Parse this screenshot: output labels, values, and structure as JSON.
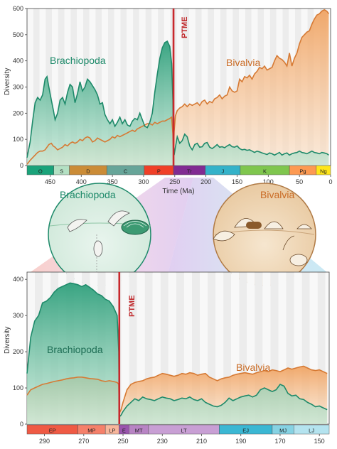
{
  "colors": {
    "brachiopoda": "#1e8a6a",
    "bivalvia": "#d67a34",
    "ptme": "#c8282c"
  },
  "chart_data": [
    {
      "type": "area",
      "ylabel": "Diversity",
      "xlabel": "Time (Ma)",
      "xlim": [
        487,
        0
      ],
      "ylim": [
        0,
        600
      ],
      "x_ticks": [
        "450",
        "400",
        "350",
        "300",
        "250",
        "200",
        "150",
        "100",
        "50",
        "0"
      ],
      "y_ticks": [
        "0",
        "100",
        "200",
        "300",
        "400",
        "500",
        "600"
      ],
      "event_label": "PTME",
      "event_x": 252,
      "periods": [
        {
          "label": "O",
          "start": 487,
          "end": 444,
          "color": "#1aa37a"
        },
        {
          "label": "S",
          "start": 444,
          "end": 419,
          "color": "#b3e0c3"
        },
        {
          "label": "D",
          "start": 419,
          "end": 359,
          "color": "#cb8c37"
        },
        {
          "label": "C",
          "start": 359,
          "end": 299,
          "color": "#67a599"
        },
        {
          "label": "P",
          "start": 299,
          "end": 252,
          "color": "#f04028"
        },
        {
          "label": "Tr",
          "start": 252,
          "end": 201,
          "color": "#812b92"
        },
        {
          "label": "J",
          "start": 201,
          "end": 145,
          "color": "#34b2c9"
        },
        {
          "label": "K",
          "start": 145,
          "end": 66,
          "color": "#7fc64e"
        },
        {
          "label": "Pg",
          "start": 66,
          "end": 23,
          "color": "#fd9a52"
        },
        {
          "label": "Ng",
          "start": 23,
          "end": 0,
          "color": "#ffe619"
        }
      ],
      "series": [
        {
          "name": "Brachiopoda",
          "x": [
            487,
            482,
            478,
            474,
            470,
            466,
            462,
            458,
            455,
            452,
            448,
            445,
            442,
            438,
            434,
            430,
            426,
            422,
            418,
            414,
            410,
            406,
            402,
            398,
            394,
            390,
            386,
            382,
            378,
            374,
            370,
            366,
            362,
            358,
            354,
            350,
            346,
            342,
            338,
            334,
            330,
            326,
            322,
            318,
            314,
            310,
            306,
            302,
            298,
            294,
            290,
            286,
            282,
            278,
            274,
            270,
            266,
            262,
            258,
            255,
            253,
            252,
            251,
            249,
            246,
            242,
            238,
            234,
            230,
            226,
            222,
            218,
            214,
            210,
            206,
            202,
            198,
            194,
            190,
            186,
            182,
            178,
            174,
            170,
            166,
            162,
            158,
            154,
            150,
            146,
            142,
            138,
            134,
            130,
            126,
            122,
            118,
            114,
            110,
            106,
            102,
            98,
            94,
            90,
            86,
            82,
            78,
            74,
            70,
            66,
            62,
            58,
            54,
            50,
            46,
            42,
            38,
            34,
            30,
            26,
            22,
            18,
            14,
            10,
            6,
            3
          ],
          "values": [
            30,
            90,
            170,
            240,
            260,
            250,
            270,
            330,
            340,
            300,
            250,
            215,
            175,
            200,
            250,
            260,
            235,
            280,
            310,
            300,
            240,
            275,
            320,
            285,
            300,
            330,
            320,
            305,
            290,
            270,
            235,
            240,
            195,
            175,
            160,
            175,
            150,
            165,
            185,
            160,
            175,
            155,
            150,
            170,
            180,
            175,
            200,
            175,
            150,
            145,
            165,
            200,
            280,
            350,
            410,
            450,
            470,
            475,
            455,
            390,
            250,
            90,
            40,
            70,
            110,
            85,
            95,
            120,
            110,
            75,
            60,
            80,
            85,
            70,
            72,
            85,
            88,
            70,
            65,
            72,
            80,
            70,
            72,
            68,
            75,
            80,
            72,
            70,
            75,
            65,
            60,
            62,
            58,
            60,
            55,
            50,
            55,
            52,
            48,
            45,
            42,
            48,
            45,
            40,
            45,
            50,
            40,
            45,
            48,
            40,
            45,
            48,
            50,
            55,
            50,
            48,
            45,
            50,
            55,
            50,
            48,
            45,
            50,
            48,
            45,
            40
          ]
        },
        {
          "name": "Bivalvia",
          "x": [
            487,
            482,
            478,
            474,
            470,
            466,
            462,
            458,
            455,
            452,
            448,
            445,
            442,
            438,
            434,
            430,
            426,
            422,
            418,
            414,
            410,
            406,
            402,
            398,
            394,
            390,
            386,
            382,
            378,
            374,
            370,
            366,
            362,
            358,
            354,
            350,
            346,
            342,
            338,
            334,
            330,
            326,
            322,
            318,
            314,
            310,
            306,
            302,
            298,
            294,
            290,
            286,
            282,
            278,
            274,
            270,
            266,
            262,
            258,
            255,
            253,
            252,
            251,
            249,
            246,
            242,
            238,
            234,
            230,
            226,
            222,
            218,
            214,
            210,
            206,
            202,
            198,
            194,
            190,
            186,
            182,
            178,
            174,
            170,
            166,
            162,
            158,
            154,
            150,
            146,
            142,
            138,
            134,
            130,
            126,
            122,
            118,
            114,
            110,
            106,
            102,
            98,
            94,
            90,
            86,
            82,
            78,
            74,
            70,
            66,
            62,
            58,
            54,
            50,
            46,
            42,
            38,
            34,
            30,
            26,
            22,
            18,
            14,
            10,
            6,
            3
          ],
          "values": [
            5,
            20,
            30,
            40,
            50,
            55,
            55,
            60,
            70,
            80,
            85,
            75,
            70,
            60,
            65,
            70,
            80,
            75,
            85,
            90,
            85,
            90,
            100,
            95,
            105,
            110,
            105,
            90,
            95,
            105,
            100,
            95,
            90,
            95,
            100,
            110,
            105,
            115,
            110,
            115,
            120,
            125,
            130,
            135,
            130,
            140,
            145,
            150,
            155,
            160,
            160,
            155,
            165,
            160,
            165,
            170,
            170,
            175,
            180,
            185,
            120,
            45,
            130,
            190,
            210,
            220,
            225,
            235,
            225,
            235,
            230,
            235,
            240,
            230,
            245,
            250,
            235,
            245,
            240,
            255,
            260,
            270,
            255,
            265,
            270,
            300,
            285,
            280,
            285,
            330,
            320,
            340,
            335,
            345,
            330,
            350,
            360,
            375,
            370,
            380,
            365,
            370,
            375,
            400,
            420,
            410,
            405,
            395,
            380,
            430,
            380,
            410,
            430,
            465,
            490,
            500,
            510,
            515,
            540,
            560,
            575,
            580,
            590,
            595,
            590,
            580
          ]
        }
      ],
      "annotations": [
        "Brachiopoda",
        "Bivalvia",
        "PTME"
      ]
    },
    {
      "type": "area",
      "ylabel": "Diversity",
      "xlabel": "",
      "xlim": [
        298.9,
        145
      ],
      "ylim": [
        0,
        420
      ],
      "x_ticks": [
        "290",
        "270",
        "250",
        "230",
        "210",
        "190",
        "170",
        "150"
      ],
      "y_ticks": [
        "0",
        "100",
        "200",
        "300",
        "400"
      ],
      "event_label": "PTME",
      "event_x": 251.9,
      "periods": [
        {
          "label": "EP",
          "start": 298.9,
          "end": 273,
          "color": "#ef5a44"
        },
        {
          "label": "MP",
          "start": 273,
          "end": 259,
          "color": "#f5806a"
        },
        {
          "label": "LP",
          "start": 259,
          "end": 252,
          "color": "#f8b69b"
        },
        {
          "label": "E",
          "start": 252,
          "end": 247,
          "color": "#9a55ad"
        },
        {
          "label": "MT",
          "start": 247,
          "end": 237,
          "color": "#b884c4"
        },
        {
          "label": "LT",
          "start": 237,
          "end": 201,
          "color": "#c89fd4"
        },
        {
          "label": "EJ",
          "start": 201,
          "end": 174,
          "color": "#3bb7d3"
        },
        {
          "label": "MJ",
          "start": 174,
          "end": 163,
          "color": "#86d2e3"
        },
        {
          "label": "LJ",
          "start": 163,
          "end": 145,
          "color": "#b4e3ef"
        }
      ],
      "series": [
        {
          "name": "Brachiopoda",
          "x": [
            298.9,
            297,
            295,
            293,
            291,
            289,
            287,
            285,
            283,
            281,
            279,
            277,
            275,
            273,
            271,
            269,
            267,
            265,
            263,
            261,
            259,
            257,
            255,
            253,
            252.2,
            251.9,
            251,
            250,
            248,
            246,
            244,
            242,
            240,
            238,
            236,
            234,
            232,
            230,
            228,
            226,
            224,
            222,
            220,
            218,
            216,
            214,
            212,
            210,
            208,
            206,
            204,
            202,
            200,
            198,
            196,
            194,
            192,
            190,
            188,
            186,
            184,
            182,
            180,
            178,
            176,
            174,
            172,
            170,
            168,
            166,
            164,
            162,
            160,
            158,
            156,
            154,
            152,
            150,
            148,
            146
          ],
          "values": [
            140,
            240,
            285,
            300,
            335,
            340,
            350,
            365,
            375,
            380,
            385,
            390,
            388,
            385,
            380,
            385,
            378,
            370,
            360,
            355,
            345,
            340,
            325,
            300,
            200,
            20,
            25,
            35,
            50,
            60,
            70,
            65,
            75,
            70,
            68,
            65,
            70,
            75,
            72,
            70,
            65,
            68,
            72,
            70,
            75,
            68,
            65,
            70,
            60,
            55,
            50,
            48,
            52,
            60,
            72,
            65,
            70,
            75,
            78,
            80,
            75,
            80,
            95,
            100,
            95,
            90,
            95,
            110,
            105,
            85,
            78,
            80,
            70,
            68,
            60,
            55,
            48,
            50,
            45,
            40
          ]
        },
        {
          "name": "Bivalvia",
          "x": [
            298.9,
            297,
            295,
            293,
            291,
            289,
            287,
            285,
            283,
            281,
            279,
            277,
            275,
            273,
            271,
            269,
            267,
            265,
            263,
            261,
            259,
            257,
            255,
            253,
            252.2,
            251.9,
            251,
            250,
            248,
            246,
            244,
            242,
            240,
            238,
            236,
            234,
            232,
            230,
            228,
            226,
            224,
            222,
            220,
            218,
            216,
            214,
            212,
            210,
            208,
            206,
            204,
            202,
            200,
            198,
            196,
            194,
            192,
            190,
            188,
            186,
            184,
            182,
            180,
            178,
            176,
            174,
            172,
            170,
            168,
            166,
            164,
            162,
            160,
            158,
            156,
            154,
            152,
            150,
            148,
            146
          ],
          "values": [
            80,
            95,
            100,
            105,
            110,
            112,
            115,
            118,
            120,
            122,
            125,
            127,
            128,
            130,
            130,
            128,
            126,
            125,
            124,
            120,
            118,
            120,
            118,
            115,
            110,
            30,
            40,
            60,
            95,
            110,
            115,
            118,
            120,
            125,
            128,
            130,
            135,
            140,
            138,
            135,
            132,
            135,
            140,
            138,
            142,
            140,
            135,
            138,
            140,
            130,
            125,
            120,
            125,
            128,
            130,
            135,
            138,
            140,
            142,
            140,
            138,
            142,
            145,
            148,
            145,
            150,
            148,
            145,
            150,
            155,
            152,
            155,
            158,
            160,
            155,
            150,
            148,
            150,
            145,
            140
          ]
        }
      ],
      "annotations": [
        "Brachiopoda",
        "Bivalvia",
        "PTME"
      ]
    }
  ],
  "illustrations": {
    "left_label": "Brachiopoda",
    "right_label": "Bivalvia"
  }
}
